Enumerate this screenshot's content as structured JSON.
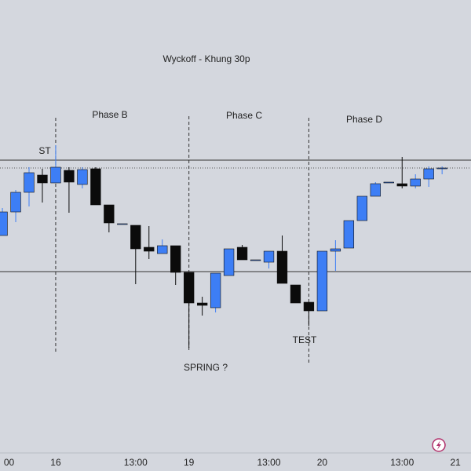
{
  "chart_data": {
    "type": "candlestick",
    "title": "Wyckoff - Khung 30p",
    "annotations": [
      "Phase B",
      "Phase C",
      "Phase D",
      "ST",
      "SPRING ?",
      "TEST"
    ],
    "x": [
      0,
      1,
      2,
      3,
      4,
      5,
      6,
      7,
      8,
      9,
      10,
      11,
      12,
      13,
      14,
      15,
      16,
      17,
      18,
      19,
      20,
      21,
      22,
      23,
      24,
      25,
      26,
      27,
      28,
      29,
      30,
      31,
      32,
      33
    ],
    "open": [
      275,
      305,
      330,
      352,
      342,
      358,
      340,
      360,
      314,
      290,
      288,
      260,
      252,
      262,
      228,
      189,
      183,
      224,
      260,
      244,
      241,
      255,
      212,
      190,
      179,
      255,
      259,
      294,
      325,
      343,
      341,
      338,
      347,
      361
    ],
    "close": [
      305,
      330,
      355,
      342,
      362,
      343,
      359,
      314,
      291,
      290,
      258,
      255,
      262,
      228,
      189,
      186,
      227,
      258,
      244,
      244,
      255,
      214,
      189,
      179,
      255,
      258,
      294,
      325,
      341,
      343,
      338,
      347,
      360,
      361
    ],
    "high": [
      310,
      333,
      362,
      360,
      390,
      362,
      362,
      362,
      314,
      290,
      288,
      287,
      270,
      262,
      228,
      197,
      227,
      258,
      263,
      244,
      255,
      275,
      212,
      190,
      255,
      269,
      294,
      325,
      343,
      343,
      375,
      353,
      363,
      363
    ],
    "low": [
      275,
      292,
      312,
      317,
      342,
      304,
      335,
      314,
      279,
      290,
      213,
      245,
      252,
      212,
      132,
      173,
      177,
      224,
      244,
      244,
      233,
      214,
      189,
      160,
      179,
      230,
      259,
      294,
      325,
      343,
      335,
      335,
      337,
      353
    ],
    "up_color": "#3d7ef5",
    "down_color": "#0b0b0b",
    "xlim": [
      -0.18,
      35.17
    ],
    "ylim": [
      0,
      575
    ],
    "xticks": [
      {
        "value": 0.5,
        "label": "00"
      },
      {
        "value": 4,
        "label": "16"
      },
      {
        "value": 10,
        "label": "13:00"
      },
      {
        "value": 14,
        "label": "19"
      },
      {
        "value": 20,
        "label": "13:00"
      },
      {
        "value": 24,
        "label": "20"
      },
      {
        "value": 30,
        "label": "13:00"
      },
      {
        "value": 34,
        "label": "21"
      }
    ],
    "hlines": [
      371,
      229
    ],
    "last_price": 361,
    "vlines": [
      4,
      14,
      23
    ]
  }
}
